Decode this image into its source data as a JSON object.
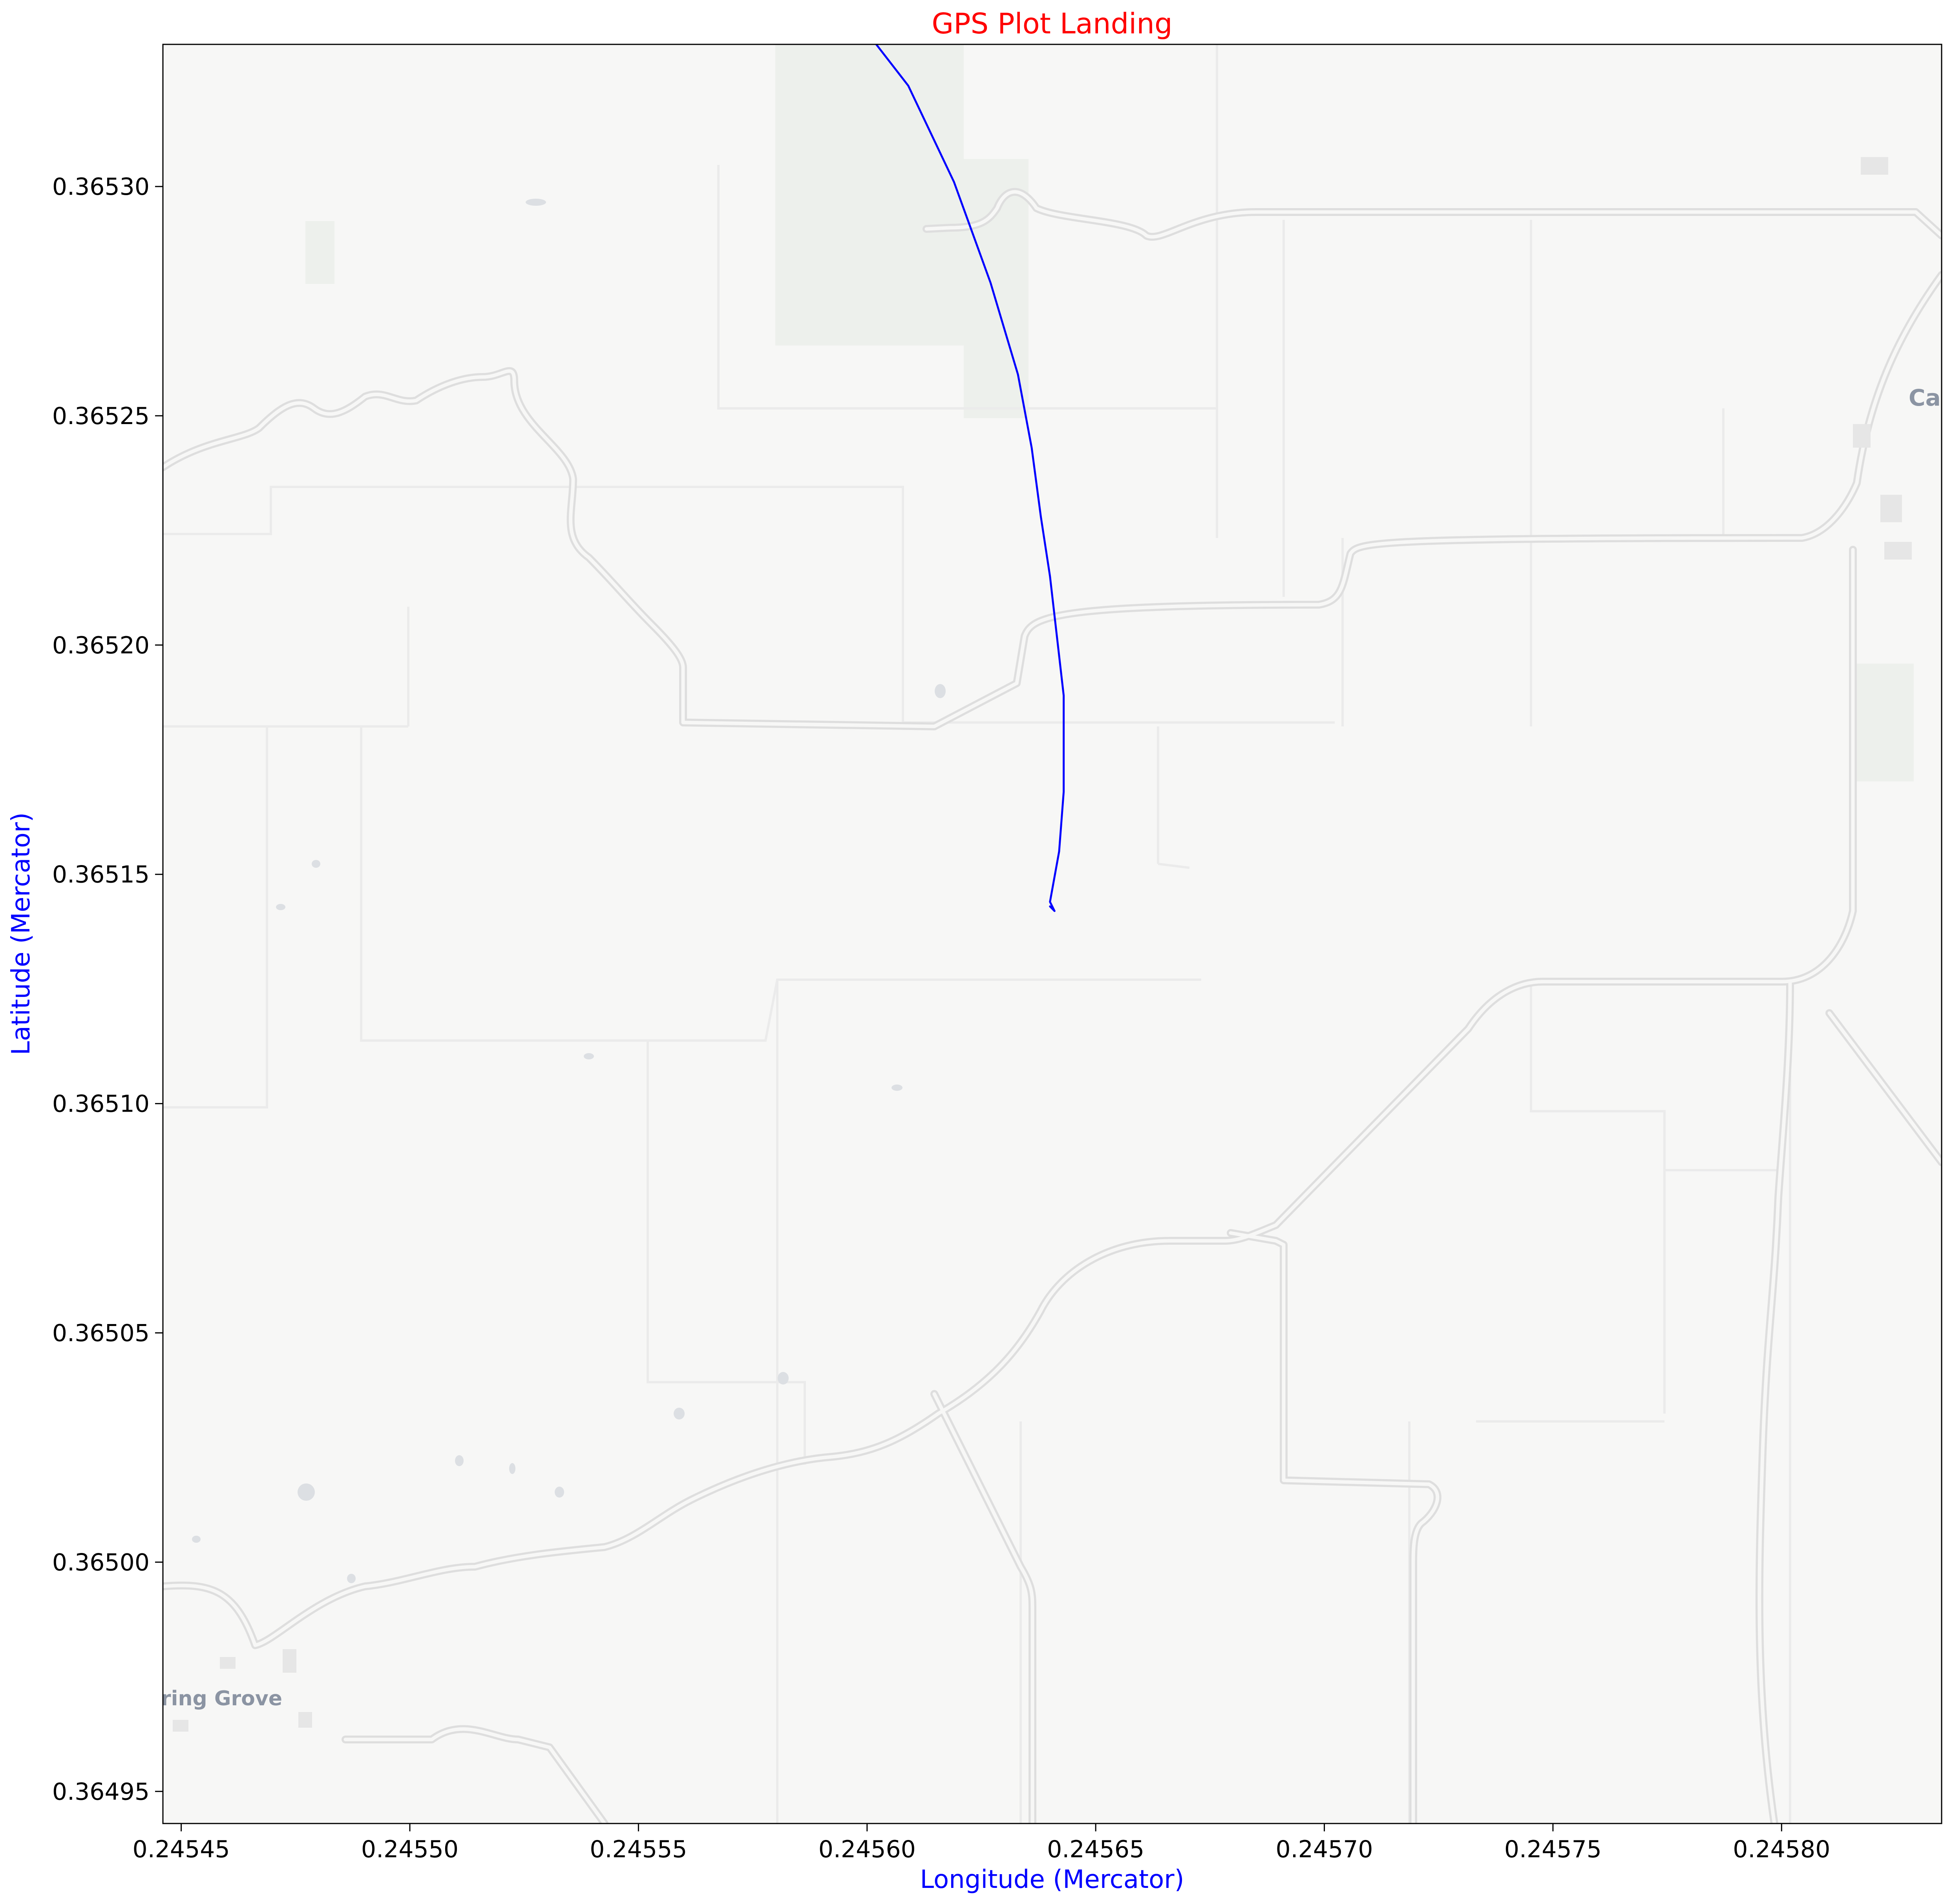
{
  "chart_data": {
    "type": "line",
    "title": "GPS Plot Landing",
    "xlabel": "Longitude (Mercator)",
    "ylabel": "Latitude (Mercator)",
    "xlim": [
      0.245446,
      0.245835
    ],
    "ylim": [
      0.365331,
      0.364943
    ],
    "y_inverted": true,
    "grid": false,
    "legend": "none",
    "xticks": [
      0.24545,
      0.2455,
      0.24555,
      0.2456,
      0.24565,
      0.2457,
      0.24575,
      0.2458
    ],
    "xtick_labels": [
      "0.24545",
      "0.24550",
      "0.24555",
      "0.24560",
      "0.24565",
      "0.24570",
      "0.24575",
      "0.24580"
    ],
    "yticks": [
      0.36495,
      0.365,
      0.36505,
      0.3651,
      0.36515,
      0.3652,
      0.36525,
      0.3653
    ],
    "ytick_labels": [
      "0.36495",
      "0.36500",
      "0.36505",
      "0.36510",
      "0.36515",
      "0.36520",
      "0.36525",
      "0.36530"
    ],
    "series": [
      {
        "x": [
          0.24564,
          0.245641,
          0.24564,
          0.245642,
          0.245643,
          0.245643,
          0.245643,
          0.24564,
          0.245638,
          0.245636,
          0.245633,
          0.245627,
          0.245619,
          0.245609,
          0.245602
        ],
        "y": [
          0.365143,
          0.365142,
          0.365144,
          0.365155,
          0.365168,
          0.365178,
          0.365189,
          0.365215,
          0.365228,
          0.365243,
          0.365259,
          0.365279,
          0.365301,
          0.365322,
          0.365331
        ]
      }
    ],
    "colors": {
      "title": "#ff0000",
      "axis_labels": "#0000ff",
      "path": "#0000ff"
    },
    "basemap": {
      "place_labels": [
        "ring Grove",
        "Ca"
      ]
    }
  }
}
